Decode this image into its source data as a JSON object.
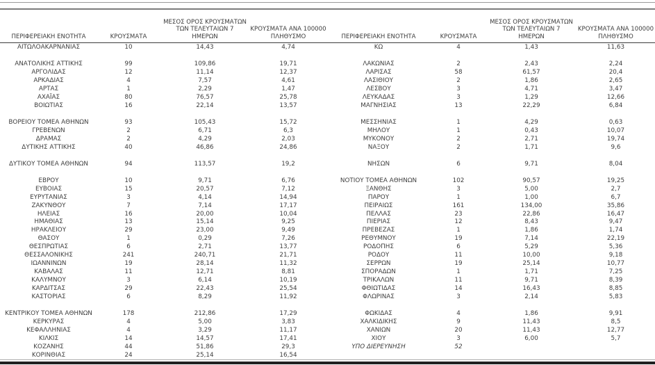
{
  "table": {
    "headers": {
      "region": "ΠΕΡΙΦΕΡΕΙΑΚΗ ΕΝΟΤΗΤΑ",
      "cases": "ΚΡΟΥΣΜΑΤΑ",
      "avg7": "ΜΕΣΟΣ ΟΡΟΣ ΚΡΟΥΣΜΑΤΩΝ\nΤΩΝ ΤΕΛΕΥΤΑΙΩΝ 7\nΗΜΕΡΩΝ",
      "per100k": "ΚΡΟΥΣΜΑΤΑ ΑΝΑ 100000\nΠΛΗΘΥΣΜΟ"
    },
    "rows": [
      {
        "l": [
          "ΑΙΤΩΛΟΑΚΑΡΝΑΝΙΑΣ",
          "10",
          "14,43",
          "4,74"
        ],
        "r": [
          "ΚΩ",
          "4",
          "1,43",
          "11,63"
        ]
      },
      {
        "l": null,
        "r": null
      },
      {
        "l": [
          "ΑΝΑΤΟΛΙΚΗΣ ΑΤΤΙΚΗΣ",
          "99",
          "109,86",
          "19,71"
        ],
        "r": [
          "ΛΑΚΩΝΙΑΣ",
          "2",
          "2,43",
          "2,24"
        ]
      },
      {
        "l": [
          "ΑΡΓΟΛΙΔΑΣ",
          "12",
          "11,14",
          "12,37"
        ],
        "r": [
          "ΛΑΡΙΣΑΣ",
          "58",
          "61,57",
          "20,4"
        ]
      },
      {
        "l": [
          "ΑΡΚΑΔΙΑΣ",
          "4",
          "7,57",
          "4,61"
        ],
        "r": [
          "ΛΑΣΙΘΙΟΥ",
          "2",
          "1,86",
          "2,65"
        ]
      },
      {
        "l": [
          "ΑΡΤΑΣ",
          "1",
          "2,29",
          "1,47"
        ],
        "r": [
          "ΛΕΣΒΟΥ",
          "3",
          "4,71",
          "3,47"
        ]
      },
      {
        "l": [
          "ΑΧΑΪΑΣ",
          "80",
          "76,57",
          "25,78"
        ],
        "r": [
          "ΛΕΥΚΑΔΑΣ",
          "3",
          "1,29",
          "12,66"
        ]
      },
      {
        "l": [
          "ΒΟΙΩΤΙΑΣ",
          "16",
          "22,14",
          "13,57"
        ],
        "r": [
          "ΜΑΓΝΗΣΙΑΣ",
          "13",
          "22,29",
          "6,84"
        ]
      },
      {
        "l": null,
        "r": null
      },
      {
        "l": [
          "ΒΟΡΕΙΟΥ ΤΟΜΕΑ ΑΘΗΝΩΝ",
          "93",
          "105,43",
          "15,72"
        ],
        "r": [
          "ΜΕΣΣΗΝΙΑΣ",
          "1",
          "4,29",
          "0,63"
        ]
      },
      {
        "l": [
          "ΓΡΕΒΕΝΩΝ",
          "2",
          "6,71",
          "6,3"
        ],
        "r": [
          "ΜΗΛΟΥ",
          "1",
          "0,43",
          "10,07"
        ]
      },
      {
        "l": [
          "ΔΡΑΜΑΣ",
          "2",
          "4,29",
          "2,03"
        ],
        "r": [
          "ΜΥΚΟΝΟΥ",
          "2",
          "2,71",
          "19,74"
        ]
      },
      {
        "l": [
          "ΔΥΤΙΚΗΣ ΑΤΤΙΚΗΣ",
          "40",
          "46,86",
          "24,86"
        ],
        "r": [
          "ΝΑΞΟΥ",
          "2",
          "1,71",
          "9,6"
        ]
      },
      {
        "l": null,
        "r": null
      },
      {
        "l": [
          "ΔΥΤΙΚΟΥ ΤΟΜΕΑ ΑΘΗΝΩΝ",
          "94",
          "113,57",
          "19,2"
        ],
        "r": [
          "ΝΗΣΩΝ",
          "6",
          "9,71",
          "8,04"
        ]
      },
      {
        "l": null,
        "r": null
      },
      {
        "l": [
          "ΕΒΡΟΥ",
          "10",
          "9,71",
          "6,76"
        ],
        "r": [
          "ΝΟΤΙΟΥ ΤΟΜΕΑ ΑΘΗΝΩΝ",
          "102",
          "90,57",
          "19,25"
        ]
      },
      {
        "l": [
          "ΕΥΒΟΙΑΣ",
          "15",
          "20,57",
          "7,12"
        ],
        "r": [
          "ΞΑΝΘΗΣ",
          "3",
          "5,00",
          "2,7"
        ]
      },
      {
        "l": [
          "ΕΥΡΥΤΑΝΙΑΣ",
          "3",
          "4,14",
          "14,94"
        ],
        "r": [
          "ΠΑΡΟΥ",
          "1",
          "1,00",
          "6,7"
        ]
      },
      {
        "l": [
          "ΖΑΚΥΝΘΟΥ",
          "7",
          "7,14",
          "17,17"
        ],
        "r": [
          "ΠΕΙΡΑΙΩΣ",
          "161",
          "134,00",
          "35,86"
        ]
      },
      {
        "l": [
          "ΗΛΕΙΑΣ",
          "16",
          "20,00",
          "10,04"
        ],
        "r": [
          "ΠΕΛΛΑΣ",
          "23",
          "22,86",
          "16,47"
        ]
      },
      {
        "l": [
          "ΗΜΑΘΙΑΣ",
          "13",
          "15,14",
          "9,25"
        ],
        "r": [
          "ΠΙΕΡΙΑΣ",
          "12",
          "8,43",
          "9,47"
        ]
      },
      {
        "l": [
          "ΗΡΑΚΛΕΙΟΥ",
          "29",
          "23,00",
          "9,49"
        ],
        "r": [
          "ΠΡΕΒΕΖΑΣ",
          "1",
          "1,86",
          "1,74"
        ]
      },
      {
        "l": [
          "ΘΑΣΟΥ",
          "1",
          "0,29",
          "7,26"
        ],
        "r": [
          "ΡΕΘΥΜΝΟΥ",
          "19",
          "7,14",
          "22,19"
        ]
      },
      {
        "l": [
          "ΘΕΣΠΡΩΤΙΑΣ",
          "6",
          "2,71",
          "13,77"
        ],
        "r": [
          "ΡΟΔΟΠΗΣ",
          "6",
          "5,29",
          "5,36"
        ]
      },
      {
        "l": [
          "ΘΕΣΣΑΛΟΝΙΚΗΣ",
          "241",
          "240,71",
          "21,71"
        ],
        "r": [
          "ΡΟΔΟΥ",
          "11",
          "10,00",
          "9,18"
        ]
      },
      {
        "l": [
          "ΙΩΑΝΝΙΝΩΝ",
          "19",
          "28,14",
          "11,32"
        ],
        "r": [
          "ΣΕΡΡΩΝ",
          "19",
          "25,14",
          "10,77"
        ]
      },
      {
        "l": [
          "ΚΑΒΑΛΑΣ",
          "11",
          "12,71",
          "8,81"
        ],
        "r": [
          "ΣΠΟΡΑΔΩΝ",
          "1",
          "1,71",
          "7,25"
        ]
      },
      {
        "l": [
          "ΚΑΛΥΜΝΟΥ",
          "3",
          "6,14",
          "10,19"
        ],
        "r": [
          "ΤΡΙΚΑΛΩΝ",
          "11",
          "9,71",
          "8,39"
        ]
      },
      {
        "l": [
          "ΚΑΡΔΙΤΣΑΣ",
          "29",
          "22,43",
          "25,54"
        ],
        "r": [
          "ΦΘΙΩΤΙΔΑΣ",
          "14",
          "16,43",
          "8,85"
        ]
      },
      {
        "l": [
          "ΚΑΣΤΟΡΙΑΣ",
          "6",
          "8,29",
          "11,92"
        ],
        "r": [
          "ΦΛΩΡΙΝΑΣ",
          "3",
          "2,14",
          "5,83"
        ]
      },
      {
        "l": null,
        "r": null
      },
      {
        "l": [
          "ΚΕΝΤΡΙΚΟΥ ΤΟΜΕΑ ΑΘΗΝΩΝ",
          "178",
          "212,86",
          "17,29"
        ],
        "r": [
          "ΦΩΚΙΔΑΣ",
          "4",
          "1,86",
          "9,91"
        ]
      },
      {
        "l": [
          "ΚΕΡΚΥΡΑΣ",
          "4",
          "5,00",
          "3,83"
        ],
        "r": [
          "ΧΑΛΚΙΔΙΚΗΣ",
          "9",
          "11,43",
          "8,5"
        ]
      },
      {
        "l": [
          "ΚΕΦΑΛΛΗΝΙΑΣ",
          "4",
          "3,29",
          "11,17"
        ],
        "r": [
          "ΧΑΝΙΩΝ",
          "20",
          "11,43",
          "12,77"
        ]
      },
      {
        "l": [
          "ΚΙΛΚΙΣ",
          "14",
          "14,57",
          "17,41"
        ],
        "r": [
          "ΧΙΟΥ",
          "3",
          "6,00",
          "5,7"
        ]
      },
      {
        "l": [
          "ΚΟΖΑΝΗΣ",
          "44",
          "51,86",
          "29,3"
        ],
        "r": [
          "ΥΠΟ ΔΙΕΡΕΥΝΗΣΗ",
          "52",
          "",
          ""
        ],
        "r_italic": true
      },
      {
        "l": [
          "ΚΟΡΙΝΘΙΑΣ",
          "24",
          "25,14",
          "16,54"
        ],
        "r": null
      }
    ]
  }
}
